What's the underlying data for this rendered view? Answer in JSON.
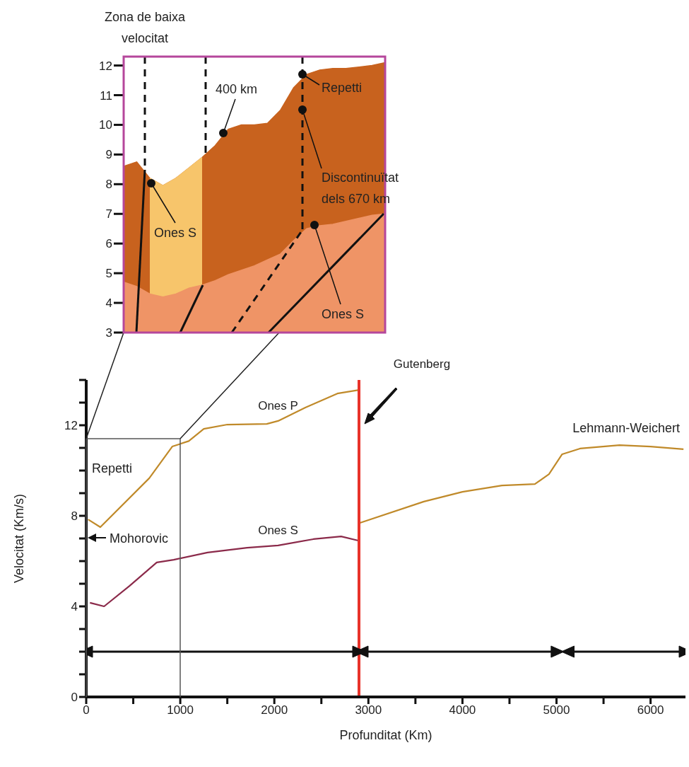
{
  "chart_data": [
    {
      "type": "area",
      "annotations": [
        "Zona de baixa velocitat",
        "400 km",
        "Repetti",
        "Discontinuïtat dels 670 km",
        "Ones S",
        "Ones S"
      ],
      "categories": [
        null,
        null,
        null,
        null,
        null,
        null,
        null,
        null,
        null,
        null,
        null,
        null,
        null,
        null,
        null,
        null,
        null,
        null,
        null,
        null,
        null
      ],
      "ylim": [
        3,
        12.3
      ],
      "yticks": [
        3,
        4,
        5,
        6,
        7,
        8,
        9,
        10,
        11,
        12
      ],
      "series": [
        {
          "color": "#c8621e",
          "values": [
            8.6,
            8.75,
            8.2,
            7.95,
            8.2,
            8.55,
            8.9,
            9.3,
            9.85,
            10.0,
            10.0,
            10.05,
            10.5,
            11.25,
            11.7,
            11.85,
            11.9,
            11.9,
            11.95,
            12.0,
            12.1
          ]
        },
        {
          "color": "#f7c56b",
          "values": [
            null,
            null,
            8.2,
            7.95,
            8.2,
            8.55,
            8.9,
            null,
            null,
            null,
            null,
            null,
            null,
            null,
            null,
            null,
            null,
            null,
            null,
            null,
            null
          ]
        },
        {
          "color": "#ef9466",
          "values": [
            4.7,
            4.55,
            4.3,
            4.2,
            4.3,
            4.5,
            4.6,
            4.75,
            4.95,
            5.1,
            5.25,
            5.45,
            5.65,
            6.1,
            6.5,
            6.6,
            6.65,
            6.75,
            6.85,
            6.95,
            7.0
          ]
        }
      ]
    },
    {
      "type": "line",
      "xlabel": "Profunditat (Km)",
      "ylabel": "Velocitat (Km/s)",
      "annotations": [
        "Lehmann-Weichert",
        "Mohorovic",
        "Repetti"
      ],
      "xlim": [
        0,
        6371
      ],
      "xticks": [
        0,
        {
          "value": 500,
          "label": null
        },
        1000,
        {
          "value": 1500,
          "label": null
        },
        2000,
        {
          "value": 2500,
          "label": null
        },
        3000,
        {
          "value": 3500,
          "label": null
        },
        4000,
        {
          "value": 4500,
          "label": null
        },
        5000,
        {
          "value": 5500,
          "label": null
        },
        6000
      ],
      "ylim": [
        0,
        14
      ],
      "yticks": [
        0,
        {
          "value": 1,
          "label": null
        },
        {
          "value": 2,
          "label": null
        },
        {
          "value": 3,
          "label": null
        },
        4,
        {
          "value": 5,
          "label": null
        },
        {
          "value": 6,
          "label": null
        },
        {
          "value": 7,
          "label": null
        },
        8,
        {
          "value": 9,
          "label": null
        },
        {
          "value": 10,
          "label": null
        },
        {
          "value": 11,
          "label": null
        },
        12,
        {
          "value": 13,
          "label": null
        },
        {
          "value": 14,
          "label": null
        }
      ],
      "series": [
        {
          "name": "Ones P",
          "color": "#c08a2a",
          "x": [
            20,
            150,
            670,
            915,
            1090,
            1250,
            1500,
            1920,
            2040,
            2330,
            2670,
            2900,
            2905,
            2910,
            3590,
            4000,
            4420,
            4770,
            4920,
            5060,
            5250,
            5670,
            6000,
            6350
          ],
          "values": [
            7.84,
            7.5,
            9.66,
            11.06,
            11.3,
            11.84,
            12.03,
            12.06,
            12.19,
            12.78,
            13.4,
            13.56,
            null,
            7.69,
            8.63,
            9.06,
            9.34,
            9.4,
            9.84,
            10.72,
            10.97,
            11.12,
            11.06,
            10.94
          ]
        },
        {
          "name": "Ones S",
          "color": "#8b2a4a",
          "x": [
            40,
            190,
            460,
            750,
            930,
            1290,
            1710,
            2040,
            2415,
            2710,
            2900
          ],
          "values": [
            4.16,
            4.0,
            4.9,
            5.94,
            6.06,
            6.38,
            6.59,
            6.69,
            6.97,
            7.09,
            6.9
          ]
        },
        {
          "color": "#111111",
          "marker": "triangle",
          "x": [
            0,
            2900
          ],
          "values": [
            2,
            2
          ]
        },
        {
          "color": "#111111",
          "marker": "triangle",
          "x": [
            2930,
            5010
          ],
          "values": [
            2,
            2
          ]
        },
        {
          "color": "#111111",
          "marker": "triangle",
          "x": [
            5120,
            6371
          ],
          "values": [
            2,
            2
          ]
        }
      ],
      "ref_lines": [
        {
          "axis": "x",
          "value": 2900,
          "label": "Gutenberg",
          "color": "#e8322a"
        }
      ]
    }
  ]
}
